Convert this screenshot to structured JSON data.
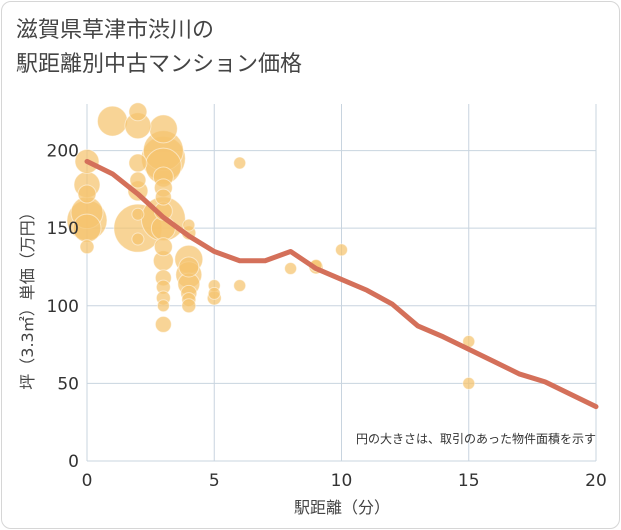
{
  "title": {
    "line1": "滋賀県草津市渋川の",
    "line2": "駅距離別中古マンション価格"
  },
  "colors": {
    "bubble": "#f5c36e",
    "line": "#d4705a",
    "grid": "#c8d4df",
    "axis_text": "#333333"
  },
  "chart_data": {
    "type": "scatter",
    "xlabel": "駅距離（分）",
    "ylabel": "坪（3.3㎡）単価（万円）",
    "xlim": [
      0,
      20
    ],
    "ylim": [
      0,
      230
    ],
    "x_ticks": [
      0,
      5,
      10,
      15,
      20
    ],
    "y_ticks": [
      0,
      50,
      100,
      150,
      200
    ],
    "annotation": "円の大きさは、取引のあった物件面積を示す",
    "points": [
      {
        "x": 0,
        "y": 193,
        "s": 12
      },
      {
        "x": 0,
        "y": 178,
        "s": 13
      },
      {
        "x": 0,
        "y": 172,
        "s": 9
      },
      {
        "x": 0,
        "y": 160,
        "s": 16
      },
      {
        "x": 0,
        "y": 155,
        "s": 20
      },
      {
        "x": 0,
        "y": 150,
        "s": 14
      },
      {
        "x": 0,
        "y": 138,
        "s": 7
      },
      {
        "x": 1,
        "y": 219,
        "s": 15
      },
      {
        "x": 2,
        "y": 225,
        "s": 9
      },
      {
        "x": 2,
        "y": 216,
        "s": 13
      },
      {
        "x": 2,
        "y": 192,
        "s": 9
      },
      {
        "x": 2,
        "y": 181,
        "s": 8
      },
      {
        "x": 2,
        "y": 174,
        "s": 10
      },
      {
        "x": 2,
        "y": 159,
        "s": 6
      },
      {
        "x": 2,
        "y": 150,
        "s": 24
      },
      {
        "x": 2,
        "y": 143,
        "s": 6
      },
      {
        "x": 3,
        "y": 214,
        "s": 14
      },
      {
        "x": 3,
        "y": 200,
        "s": 20
      },
      {
        "x": 3,
        "y": 195,
        "s": 22
      },
      {
        "x": 3,
        "y": 190,
        "s": 18
      },
      {
        "x": 3,
        "y": 183,
        "s": 10
      },
      {
        "x": 3,
        "y": 176,
        "s": 9
      },
      {
        "x": 3,
        "y": 170,
        "s": 8
      },
      {
        "x": 3,
        "y": 161,
        "s": 9
      },
      {
        "x": 3,
        "y": 156,
        "s": 22
      },
      {
        "x": 3,
        "y": 150,
        "s": 12
      },
      {
        "x": 3,
        "y": 138,
        "s": 9
      },
      {
        "x": 3,
        "y": 129,
        "s": 10
      },
      {
        "x": 3,
        "y": 118,
        "s": 8
      },
      {
        "x": 3,
        "y": 112,
        "s": 7
      },
      {
        "x": 3,
        "y": 105,
        "s": 7
      },
      {
        "x": 3,
        "y": 100,
        "s": 6
      },
      {
        "x": 3,
        "y": 88,
        "s": 8
      },
      {
        "x": 4,
        "y": 152,
        "s": 6
      },
      {
        "x": 4,
        "y": 147,
        "s": 7
      },
      {
        "x": 4,
        "y": 130,
        "s": 14
      },
      {
        "x": 4,
        "y": 125,
        "s": 10
      },
      {
        "x": 4,
        "y": 120,
        "s": 13
      },
      {
        "x": 4,
        "y": 114,
        "s": 11
      },
      {
        "x": 4,
        "y": 108,
        "s": 8
      },
      {
        "x": 4,
        "y": 104,
        "s": 7
      },
      {
        "x": 4,
        "y": 100,
        "s": 7
      },
      {
        "x": 5,
        "y": 113,
        "s": 6
      },
      {
        "x": 5,
        "y": 108,
        "s": 6
      },
      {
        "x": 5,
        "y": 105,
        "s": 7
      },
      {
        "x": 6,
        "y": 192,
        "s": 6
      },
      {
        "x": 6,
        "y": 113,
        "s": 6
      },
      {
        "x": 8,
        "y": 124,
        "s": 6
      },
      {
        "x": 9,
        "y": 126,
        "s": 6
      },
      {
        "x": 9,
        "y": 125,
        "s": 7
      },
      {
        "x": 10,
        "y": 136,
        "s": 6
      },
      {
        "x": 15,
        "y": 77,
        "s": 6
      },
      {
        "x": 15,
        "y": 50,
        "s": 6
      }
    ],
    "trend_line": {
      "x": [
        0,
        1,
        2,
        3,
        4,
        5,
        6,
        7,
        8,
        9,
        10,
        11,
        12,
        13,
        14,
        15,
        16,
        17,
        18,
        19,
        20
      ],
      "y": [
        193,
        185,
        172,
        157,
        145,
        135,
        129,
        129,
        135,
        124,
        117,
        110,
        101,
        87,
        80,
        72,
        64,
        56,
        51,
        43,
        35
      ]
    }
  }
}
